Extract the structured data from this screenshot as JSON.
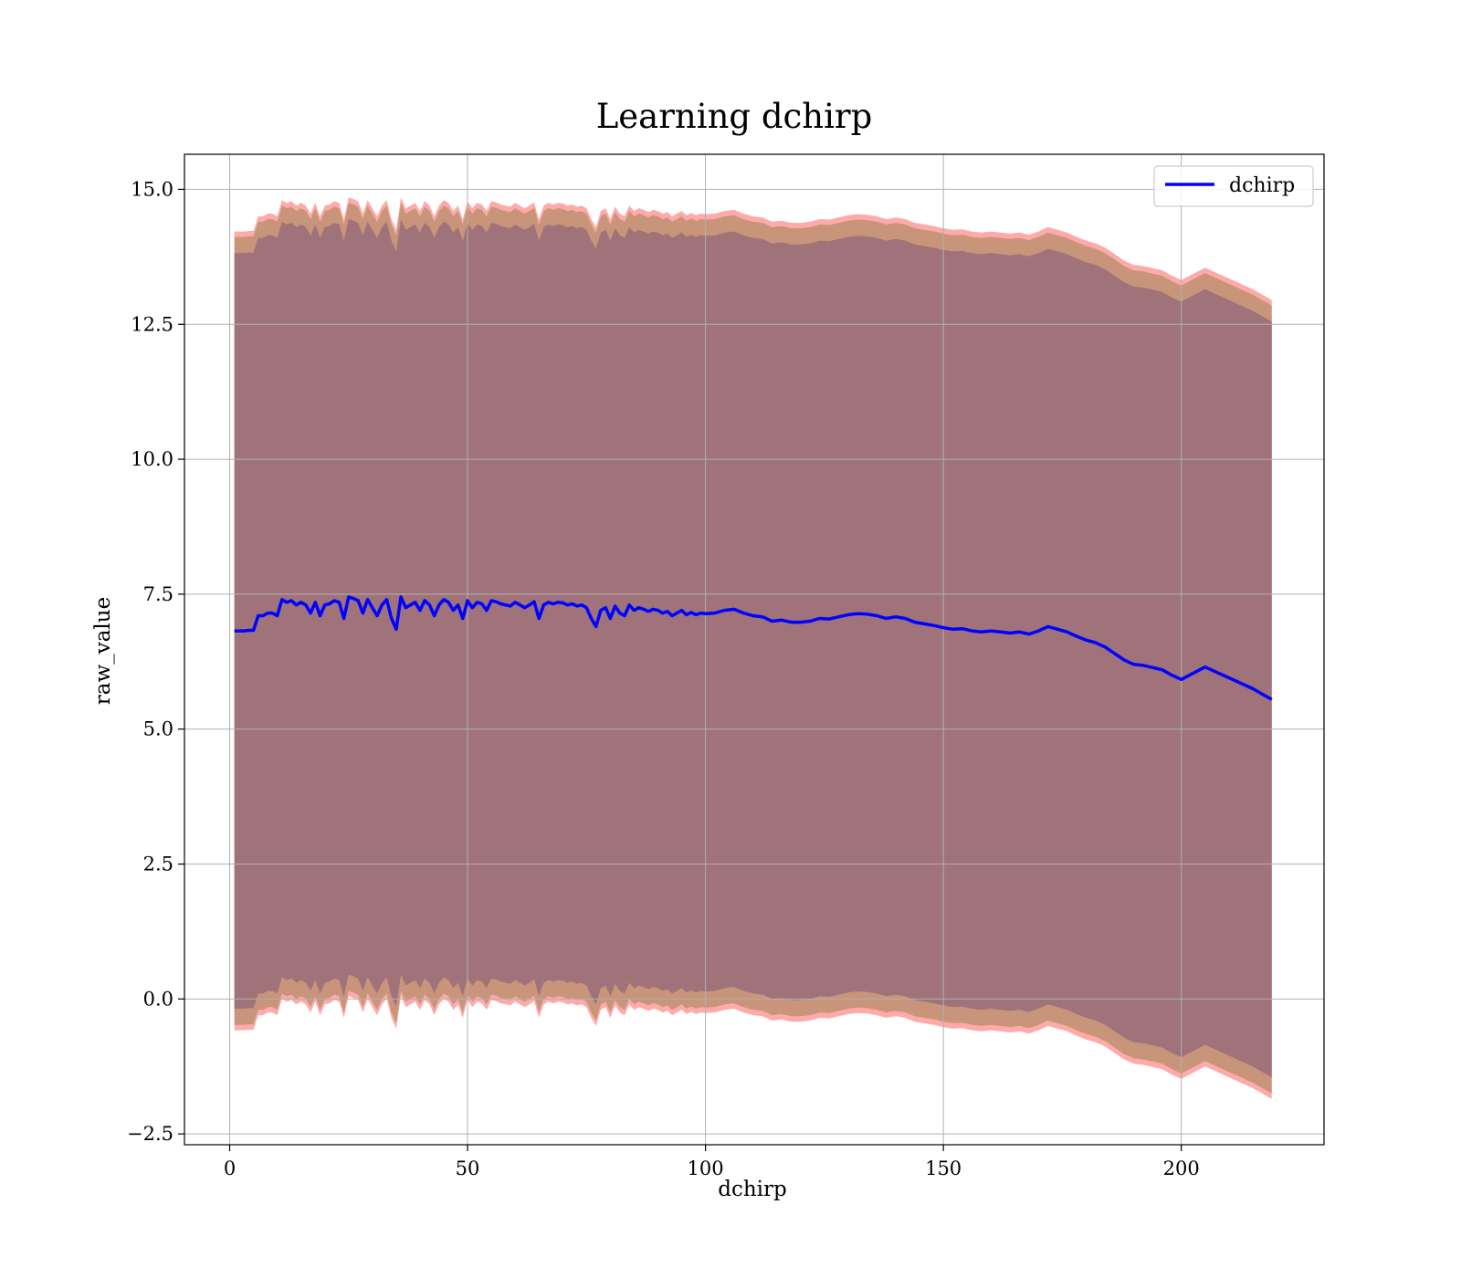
{
  "chart_data": {
    "type": "line",
    "title": "Learning dchirp",
    "xlabel": "dchirp",
    "ylabel": "raw_value",
    "xlim": [
      -9.5,
      230
    ],
    "ylim": [
      -2.7,
      15.65
    ],
    "xticks": [
      0,
      50,
      100,
      150,
      200
    ],
    "xtick_labels": [
      "0",
      "50",
      "100",
      "150",
      "200"
    ],
    "yticks": [
      -2.5,
      0.0,
      2.5,
      5.0,
      7.5,
      10.0,
      12.5,
      15.0
    ],
    "ytick_labels": [
      "−2.5",
      "0.0",
      "2.5",
      "5.0",
      "7.5",
      "10.0",
      "12.5",
      "15.0"
    ],
    "grid": true,
    "legend": {
      "position": "top-right",
      "entries": [
        "dchirp"
      ]
    },
    "colors": {
      "line": "#0000ff",
      "band_outer": "#ffaaaa",
      "band_middle": "#c8957a",
      "band_inner": "#a0737a",
      "grid": "#b0b0b0"
    },
    "band_offsets": {
      "inner": 7.0,
      "middle": 7.3,
      "outer": 7.4
    },
    "series": [
      {
        "name": "dchirp",
        "x": [
          1,
          2,
          3,
          4,
          5,
          6,
          7,
          8,
          9,
          10,
          11,
          12,
          13,
          14,
          15,
          16,
          17,
          18,
          19,
          20,
          21,
          22,
          23,
          24,
          25,
          26,
          27,
          28,
          29,
          30,
          31,
          32,
          33,
          34,
          35,
          36,
          37,
          38,
          39,
          40,
          41,
          42,
          43,
          44,
          45,
          46,
          47,
          48,
          49,
          50,
          51,
          52,
          53,
          54,
          55,
          56,
          57,
          58,
          59,
          60,
          61,
          62,
          63,
          64,
          65,
          66,
          67,
          68,
          69,
          70,
          71,
          72,
          73,
          74,
          75,
          76,
          77,
          78,
          79,
          80,
          81,
          82,
          83,
          84,
          85,
          86,
          87,
          88,
          89,
          90,
          91,
          92,
          93,
          94,
          95,
          96,
          97,
          98,
          99,
          100,
          102,
          104,
          106,
          108,
          110,
          112,
          114,
          116,
          118,
          120,
          122,
          124,
          126,
          128,
          130,
          132,
          134,
          136,
          138,
          140,
          142,
          144,
          146,
          148,
          150,
          152,
          154,
          156,
          158,
          160,
          162,
          164,
          166,
          168,
          170,
          172,
          174,
          176,
          178,
          180,
          182,
          184,
          186,
          188,
          190,
          192,
          194,
          196,
          198,
          200,
          205,
          210,
          215,
          219
        ],
        "values": [
          6.82,
          6.82,
          6.82,
          6.83,
          6.83,
          7.1,
          7.1,
          7.15,
          7.15,
          7.1,
          7.4,
          7.35,
          7.38,
          7.3,
          7.35,
          7.3,
          7.15,
          7.35,
          7.1,
          7.3,
          7.32,
          7.38,
          7.35,
          7.05,
          7.45,
          7.42,
          7.38,
          7.15,
          7.4,
          7.25,
          7.1,
          7.3,
          7.4,
          7.05,
          6.85,
          7.45,
          7.25,
          7.3,
          7.35,
          7.2,
          7.38,
          7.3,
          7.1,
          7.3,
          7.4,
          7.35,
          7.2,
          7.3,
          7.05,
          7.38,
          7.25,
          7.35,
          7.32,
          7.2,
          7.38,
          7.36,
          7.32,
          7.3,
          7.28,
          7.35,
          7.3,
          7.25,
          7.3,
          7.36,
          7.05,
          7.3,
          7.35,
          7.32,
          7.35,
          7.34,
          7.3,
          7.32,
          7.28,
          7.3,
          7.25,
          7.05,
          6.9,
          7.2,
          7.25,
          7.05,
          7.28,
          7.15,
          7.1,
          7.3,
          7.2,
          7.25,
          7.22,
          7.18,
          7.22,
          7.2,
          7.15,
          7.18,
          7.1,
          7.15,
          7.2,
          7.12,
          7.16,
          7.12,
          7.15,
          7.14,
          7.15,
          7.2,
          7.22,
          7.15,
          7.1,
          7.08,
          7.0,
          7.02,
          6.98,
          6.98,
          7.0,
          7.05,
          7.04,
          7.08,
          7.12,
          7.14,
          7.13,
          7.1,
          7.05,
          7.08,
          7.05,
          6.98,
          6.95,
          6.92,
          6.88,
          6.85,
          6.86,
          6.82,
          6.8,
          6.82,
          6.8,
          6.78,
          6.8,
          6.76,
          6.82,
          6.9,
          6.85,
          6.8,
          6.72,
          6.65,
          6.6,
          6.52,
          6.4,
          6.28,
          6.2,
          6.18,
          6.14,
          6.1,
          6.0,
          5.92,
          6.15,
          5.95,
          5.75,
          5.55
        ]
      }
    ]
  }
}
